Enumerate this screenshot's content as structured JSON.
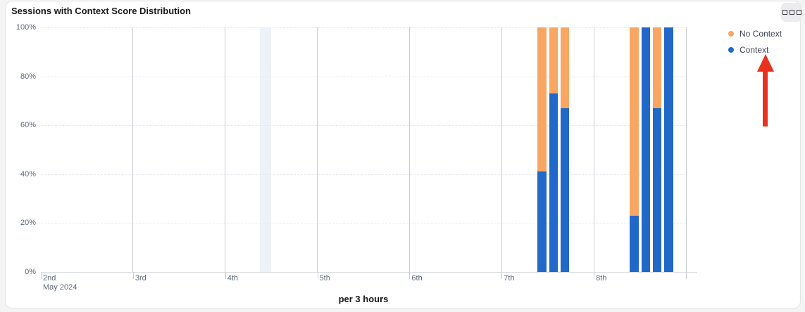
{
  "card": {
    "title": "Sessions with Context Score Distribution"
  },
  "menu": {
    "icon": "three-squares-icon"
  },
  "legend": {
    "items": [
      {
        "label": "No Context",
        "color": "#f8a664"
      },
      {
        "label": "Context",
        "color": "#2268c8"
      }
    ]
  },
  "annotation": {
    "type": "red-up-arrow",
    "color": "#e8321f",
    "points_to": "Context"
  },
  "chart_data": {
    "type": "bar",
    "stacked": true,
    "stack_mode": "percent",
    "title": "Sessions with Context Score Distribution",
    "xlabel": "per 3 hours",
    "ylabel": "",
    "ylim": [
      0,
      100
    ],
    "y_ticks": [
      "0%",
      "20%",
      "40%",
      "60%",
      "80%",
      "100%"
    ],
    "x_ticks": [
      "2nd",
      "3rd",
      "4th",
      "5th",
      "6th",
      "7th",
      "8th"
    ],
    "x_axis_secondary_label": "May 2024",
    "granularity_hours": 3,
    "slots_per_day": 8,
    "grid": true,
    "legend_position": "top-right",
    "series": [
      {
        "name": "Context",
        "color": "#2268c8"
      },
      {
        "name": "No Context",
        "color": "#f8a664"
      }
    ],
    "bars": [
      {
        "day": "7th",
        "slot": 3,
        "context_pct": 41,
        "no_context_pct": 59
      },
      {
        "day": "7th",
        "slot": 4,
        "context_pct": 73,
        "no_context_pct": 27
      },
      {
        "day": "7th",
        "slot": 5,
        "context_pct": 67,
        "no_context_pct": 33
      },
      {
        "day": "8th",
        "slot": 3,
        "context_pct": 23,
        "no_context_pct": 77
      },
      {
        "day": "8th",
        "slot": 4,
        "context_pct": 100,
        "no_context_pct": 0
      },
      {
        "day": "8th",
        "slot": 5,
        "context_pct": 67,
        "no_context_pct": 33
      },
      {
        "day": "8th",
        "slot": 6,
        "context_pct": 100,
        "no_context_pct": 0
      }
    ],
    "highlight_band": {
      "day": "4th",
      "slot": 3,
      "color": "#edf2f8"
    }
  }
}
